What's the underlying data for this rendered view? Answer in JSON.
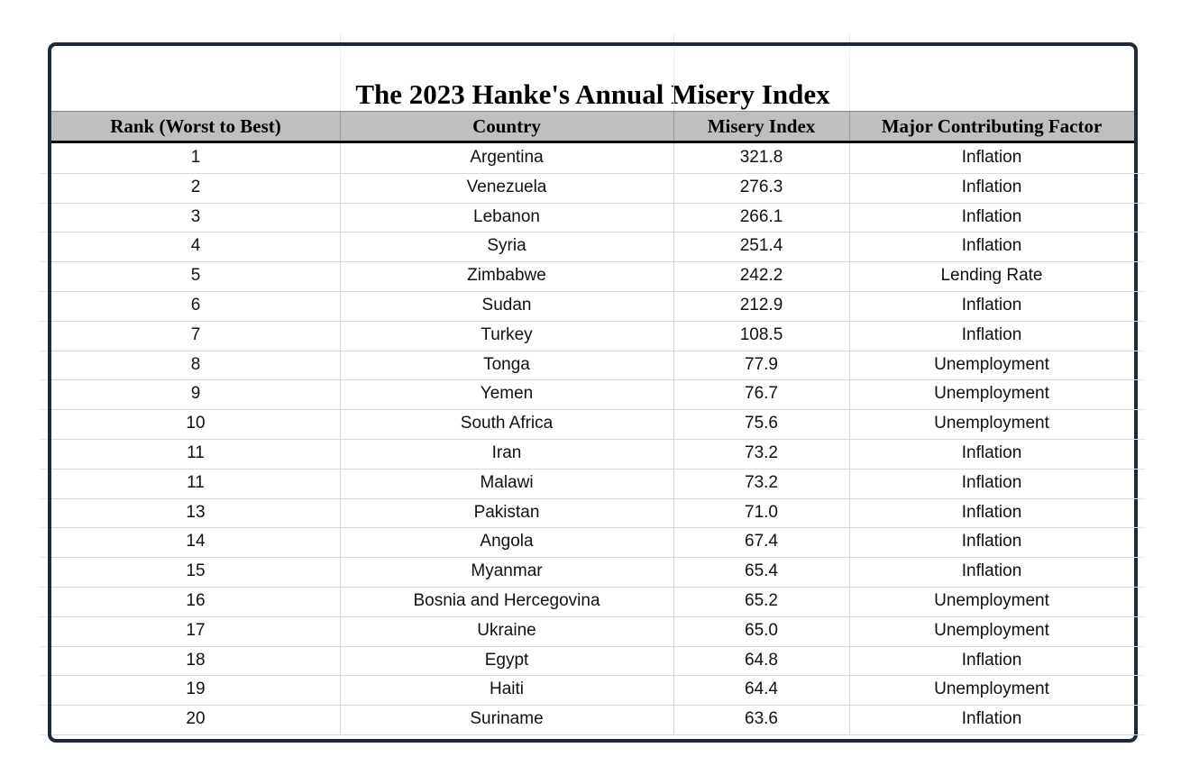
{
  "title": "The 2023 Hanke's Annual Misery Index",
  "table": {
    "header": [
      "Rank (Worst to Best)",
      "Country",
      "Misery Index",
      "Major Contributing Factor"
    ],
    "rows": [
      [
        "1",
        "Argentina",
        "321.8",
        "Inflation"
      ],
      [
        "2",
        "Venezuela",
        "276.3",
        "Inflation"
      ],
      [
        "3",
        "Lebanon",
        "266.1",
        "Inflation"
      ],
      [
        "4",
        "Syria",
        "251.4",
        "Inflation"
      ],
      [
        "5",
        "Zimbabwe",
        "242.2",
        "Lending Rate"
      ],
      [
        "6",
        "Sudan",
        "212.9",
        "Inflation"
      ],
      [
        "7",
        "Turkey",
        "108.5",
        "Inflation"
      ],
      [
        "8",
        "Tonga",
        "77.9",
        "Unemployment"
      ],
      [
        "9",
        "Yemen",
        "76.7",
        "Unemployment"
      ],
      [
        "10",
        "South Africa",
        "75.6",
        "Unemployment"
      ],
      [
        "11",
        "Iran",
        "73.2",
        "Inflation"
      ],
      [
        "11",
        "Malawi",
        "73.2",
        "Inflation"
      ],
      [
        "13",
        "Pakistan",
        "71.0",
        "Inflation"
      ],
      [
        "14",
        "Angola",
        "67.4",
        "Inflation"
      ],
      [
        "15",
        "Myanmar",
        "65.4",
        "Inflation"
      ],
      [
        "16",
        "Bosnia and Hercegovina",
        "65.2",
        "Unemployment"
      ],
      [
        "17",
        "Ukraine",
        "65.0",
        "Unemployment"
      ],
      [
        "18",
        "Egypt",
        "64.8",
        "Inflation"
      ],
      [
        "19",
        "Haiti",
        "64.4",
        "Unemployment"
      ],
      [
        "20",
        "Suriname",
        "63.6",
        "Inflation"
      ]
    ]
  }
}
